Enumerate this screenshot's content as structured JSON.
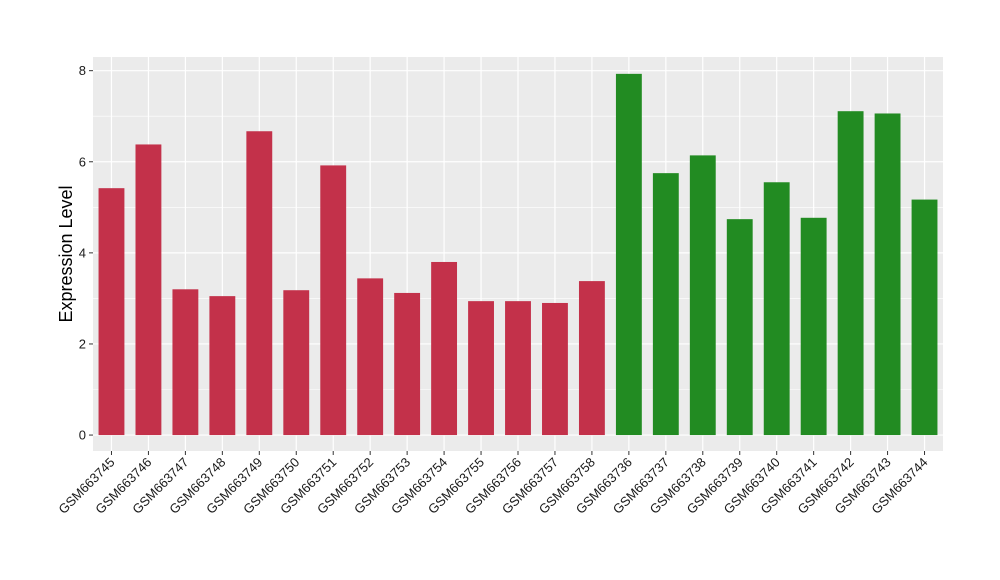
{
  "chart_data": {
    "type": "bar",
    "title": "",
    "xlabel": "",
    "ylabel": "Expression Level",
    "ylim": [
      -0.35,
      8.3
    ],
    "yticks": [
      0,
      2,
      4,
      6,
      8
    ],
    "grid": true,
    "legend": "none",
    "categories": [
      "GSM663745",
      "GSM663746",
      "GSM663747",
      "GSM663748",
      "GSM663749",
      "GSM663750",
      "GSM663751",
      "GSM663752",
      "GSM663753",
      "GSM663754",
      "GSM663755",
      "GSM663756",
      "GSM663757",
      "GSM663758",
      "GSM663736",
      "GSM663737",
      "GSM663738",
      "GSM663739",
      "GSM663740",
      "GSM663741",
      "GSM663742",
      "GSM663743",
      "GSM663744"
    ],
    "values": [
      5.42,
      6.38,
      3.2,
      3.05,
      6.67,
      3.18,
      5.92,
      3.44,
      3.12,
      3.8,
      2.94,
      2.94,
      2.9,
      3.38,
      7.93,
      5.75,
      6.14,
      4.74,
      5.55,
      4.77,
      7.11,
      7.06,
      5.17
    ],
    "group_sizes": [
      14,
      9
    ],
    "group_colors": [
      "#C3314A",
      "#228B22"
    ],
    "panel_background": "#EBEBEB",
    "grid_color": "#FFFFFF"
  }
}
